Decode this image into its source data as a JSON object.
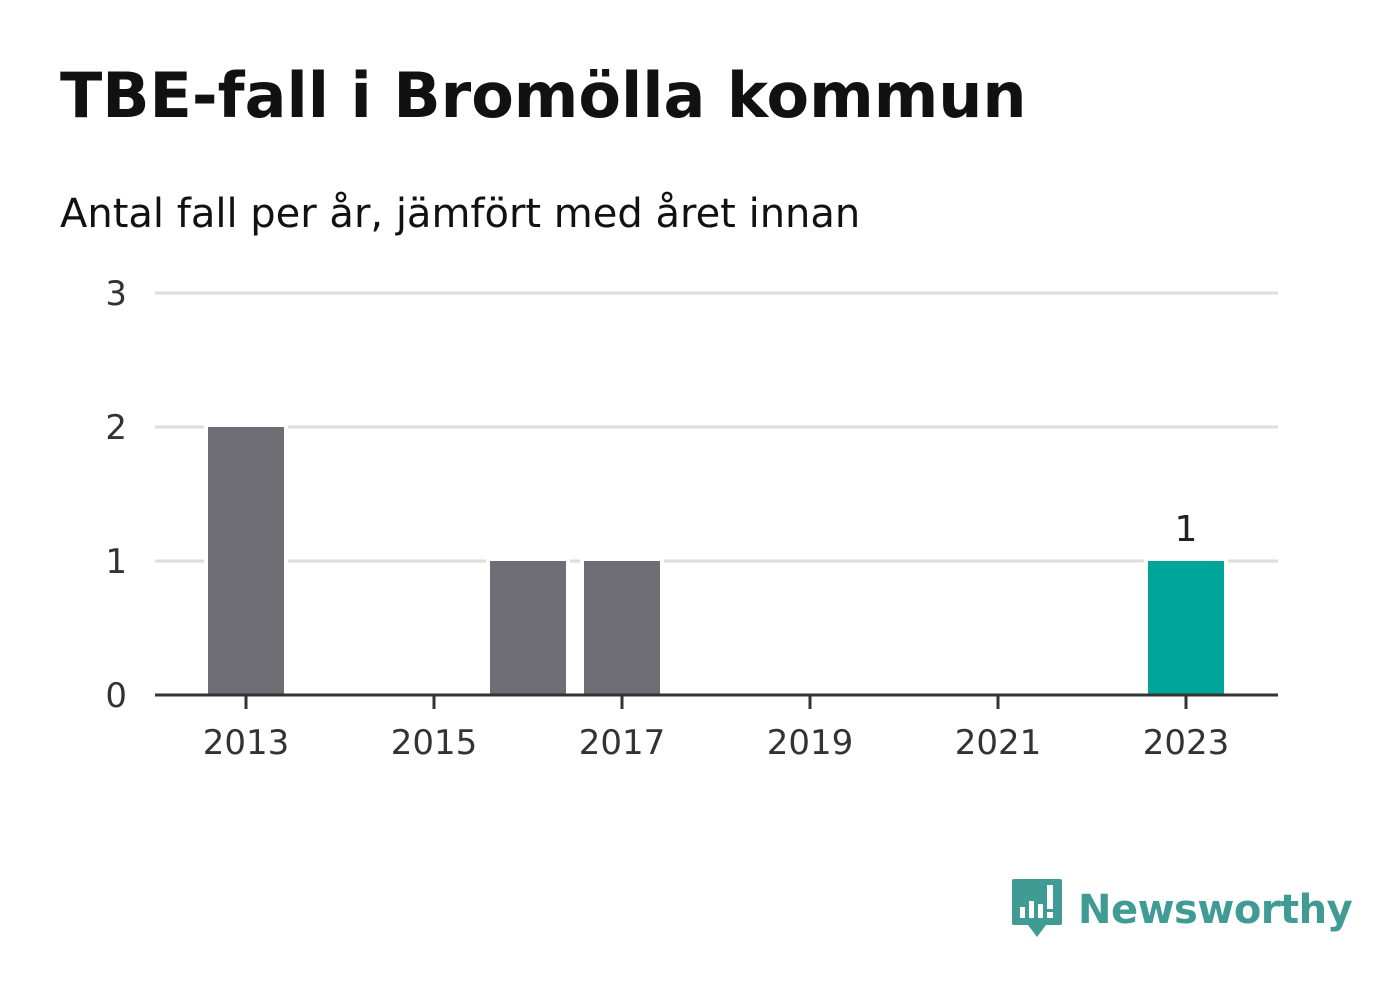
{
  "header": {
    "title": "TBE-fall i Bromölla kommun",
    "subtitle": "Antal fall per år, jämfört med året innan"
  },
  "brand": {
    "name": "Newsworthy",
    "icon": "newsworthy-logo-icon",
    "color": "#3f9b93"
  },
  "colors": {
    "bar_default": "#6f6e74",
    "bar_highlight": "#00a59a",
    "gridline": "#dddddd",
    "axis": "#333333"
  },
  "chart_data": {
    "type": "bar",
    "title": "TBE-fall i Bromölla kommun",
    "subtitle": "Antal fall per år, jämfört med året innan",
    "categories": [
      "2013",
      "2014",
      "2015",
      "2016",
      "2017",
      "2018",
      "2019",
      "2020",
      "2021",
      "2022",
      "2023"
    ],
    "values": [
      2,
      0,
      0,
      1,
      1,
      0,
      0,
      0,
      0,
      0,
      1
    ],
    "highlight_category": "2023",
    "xticks": [
      "2013",
      "2015",
      "2017",
      "2019",
      "2021",
      "2023"
    ],
    "yticks": [
      0,
      1,
      2,
      3
    ],
    "ylim": [
      0,
      3
    ],
    "xlabel": "",
    "ylabel": "",
    "grid": true,
    "data_labels": [
      {
        "category": "2023",
        "text": "1"
      }
    ]
  }
}
